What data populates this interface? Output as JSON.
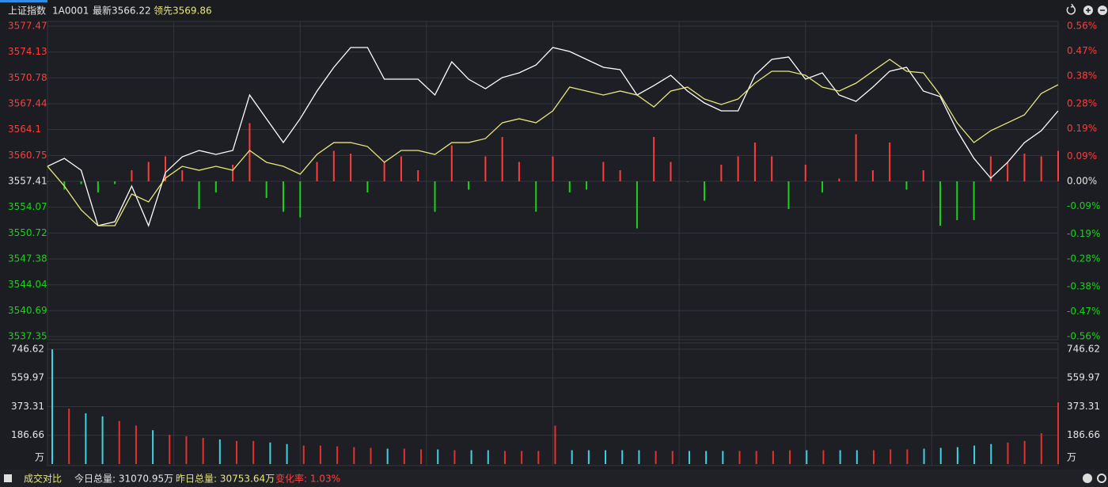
{
  "header": {
    "name": "上证指数",
    "code": "1A0001",
    "latest": "最新3566.22",
    "lead": "领先3569.86"
  },
  "chart_data": [
    {
      "type": "line",
      "ylim": [
        3537.35,
        3577.47
      ],
      "yticks": [
        3577.47,
        3574.13,
        3570.78,
        3567.44,
        3564.1,
        3560.75,
        3557.41,
        3554.07,
        3550.72,
        3547.38,
        3544.04,
        3540.69,
        3537.35
      ],
      "y2lim": [
        -0.56,
        0.56
      ],
      "y2ticks": [
        {
          "value": 0.56,
          "label": "0.56%"
        },
        {
          "value": 0.47,
          "label": "0.47%"
        },
        {
          "value": 0.38,
          "label": "0.38%"
        },
        {
          "value": 0.28,
          "label": "0.28%"
        },
        {
          "value": 0.19,
          "label": "0.19%"
        },
        {
          "value": 0.09,
          "label": "0.09%"
        },
        {
          "value": 0,
          "label": "0.00%"
        },
        {
          "value": -0.09,
          "label": "-0.09%"
        },
        {
          "value": -0.19,
          "label": "-0.19%"
        },
        {
          "value": -0.28,
          "label": "-0.28%"
        },
        {
          "value": -0.38,
          "label": "-0.38%"
        },
        {
          "value": -0.47,
          "label": "-0.47%"
        },
        {
          "value": -0.56,
          "label": "-0.56%"
        }
      ],
      "grid": true,
      "series": [
        {
          "type": "bar",
          "axis": "y2",
          "up_color": "#ff3b3b",
          "down_color": "#19d219",
          "values": [
            0,
            -0.03,
            -0.01,
            -0.04,
            -0.01,
            0.04,
            0.07,
            0.09,
            0.04,
            -0.1,
            -0.04,
            0.06,
            0.21,
            -0.06,
            -0.11,
            -0.13,
            0.07,
            0.11,
            0.1,
            -0.04,
            0.07,
            0.09,
            0.04,
            -0.11,
            0.13,
            -0.03,
            0.09,
            0.16,
            0.07,
            -0.11,
            0.09,
            -0.04,
            -0.03,
            0.07,
            0.04,
            -0.17,
            0.16,
            0.07,
            0,
            -0.07,
            0.06,
            0.09,
            0.14,
            0.09,
            -0.1,
            0.06,
            -0.04,
            0.01,
            0.17,
            0.04,
            0.14,
            -0.03,
            0.04,
            -0.16,
            -0.14,
            -0.14,
            0.09,
            0.07,
            0.1,
            0.09,
            0.11
          ]
        },
        {
          "type": "line",
          "color": "#ffffff",
          "values": [
            3559.35,
            3560.38,
            3558.84,
            3551.68,
            3552.19,
            3556.8,
            3551.68,
            3558.54,
            3560.58,
            3561.4,
            3560.89,
            3561.4,
            3568.57,
            3565.5,
            3562.42,
            3565.5,
            3569.08,
            3572.15,
            3574.71,
            3574.71,
            3570.61,
            3570.61,
            3570.61,
            3568.57,
            3572.86,
            3570.61,
            3569.38,
            3570.82,
            3571.43,
            3572.45,
            3574.71,
            3574.19,
            3573.17,
            3572.15,
            3571.84,
            3568.57,
            3569.79,
            3571.12,
            3569.08,
            3567.54,
            3566.52,
            3566.52,
            3571.12,
            3573.17,
            3573.48,
            3570.61,
            3571.43,
            3568.57,
            3567.75,
            3569.59,
            3571.64,
            3572.15,
            3569.08,
            3568.36,
            3563.96,
            3560.38,
            3557.82,
            3559.87,
            3562.42,
            3563.96,
            3566.52
          ]
        },
        {
          "type": "line",
          "color": "#e8e67c",
          "values": [
            3559.35,
            3556.8,
            3553.72,
            3551.68,
            3551.68,
            3555.77,
            3554.75,
            3557.82,
            3559.35,
            3558.84,
            3559.35,
            3558.84,
            3561.4,
            3559.87,
            3559.35,
            3558.33,
            3560.89,
            3562.42,
            3562.42,
            3561.91,
            3559.87,
            3561.4,
            3561.4,
            3560.89,
            3562.42,
            3562.42,
            3562.94,
            3564.98,
            3565.5,
            3564.98,
            3566.52,
            3569.59,
            3569.08,
            3568.57,
            3569.08,
            3568.57,
            3567.03,
            3569.08,
            3569.59,
            3568.05,
            3567.34,
            3568.05,
            3570.1,
            3571.64,
            3571.64,
            3571.12,
            3569.59,
            3569.08,
            3570.1,
            3571.64,
            3573.17,
            3571.64,
            3571.43,
            3568.57,
            3564.98,
            3562.42,
            3563.96,
            3564.98,
            3566.01,
            3568.77,
            3569.9
          ]
        }
      ]
    },
    {
      "type": "bar",
      "ylim": [
        0,
        746.62
      ],
      "yticks": [
        746.62,
        559.97,
        373.31,
        186.66
      ],
      "unit": "万",
      "grid": true,
      "up_color": "#e5312c",
      "down_color": "#3fd2e0",
      "values": [
        746,
        360,
        330,
        310,
        280,
        250,
        220,
        190,
        180,
        170,
        160,
        150,
        150,
        140,
        130,
        120,
        120,
        115,
        110,
        105,
        100,
        100,
        95,
        95,
        90,
        90,
        90,
        85,
        85,
        85,
        250,
        90,
        90,
        90,
        90,
        90,
        85,
        85,
        85,
        85,
        85,
        85,
        85,
        85,
        90,
        90,
        90,
        90,
        90,
        90,
        95,
        95,
        100,
        105,
        110,
        120,
        130,
        140,
        150,
        200,
        400
      ]
    }
  ],
  "status": {
    "label": "成交对比",
    "today": "今日总量: 31070.95万",
    "yesterday": "昨日总量: 30753.64万",
    "change": "变化率: 1.03%"
  }
}
